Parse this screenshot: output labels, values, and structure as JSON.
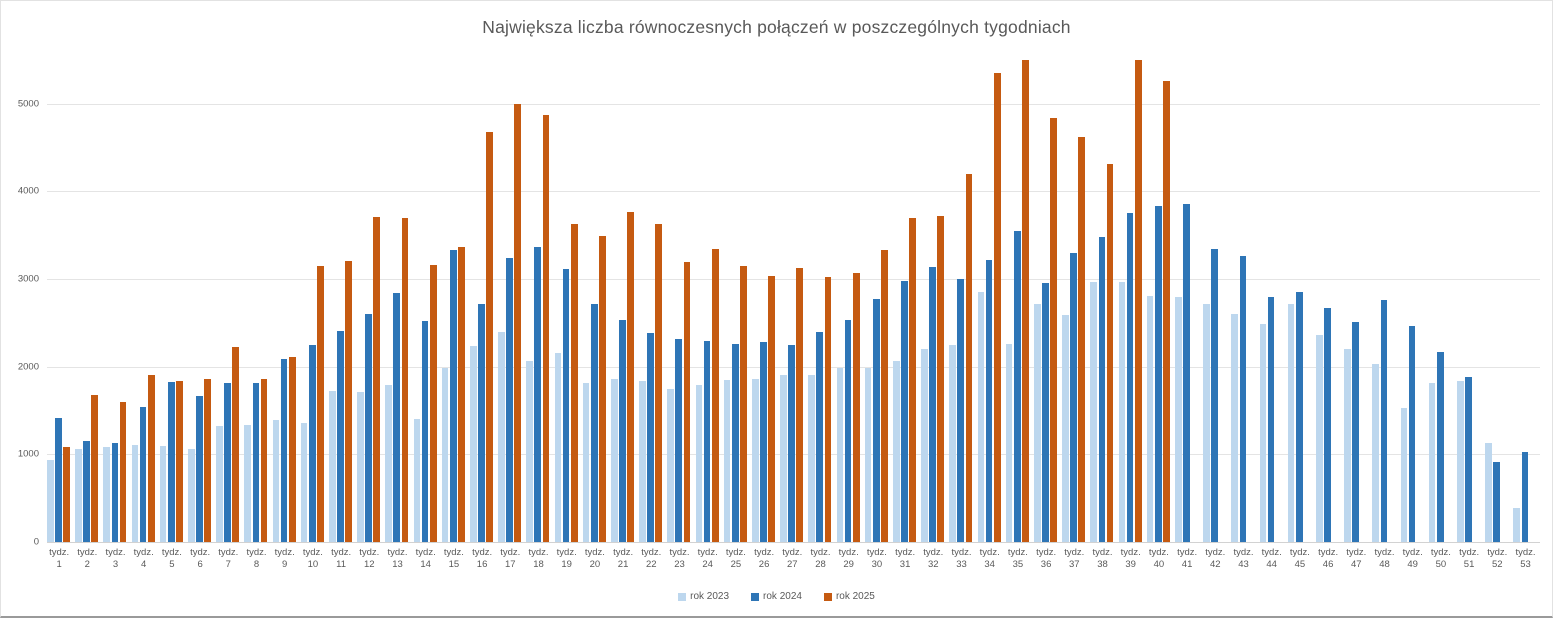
{
  "title": "Największa liczba równoczesnych połączeń w poszczególnych tygodniach",
  "colors": {
    "rok2023": "#BDD7EE",
    "rok2024": "#2E75B6",
    "rok2025": "#C55A11",
    "title_text": "#595959",
    "axis_text": "#595959",
    "gridline": "#E4E4E4"
  },
  "legend": [
    {
      "label": "rok 2023",
      "color": "#BDD7EE"
    },
    {
      "label": "rok 2024",
      "color": "#2E75B6"
    },
    {
      "label": "rok 2025",
      "color": "#C55A11"
    }
  ],
  "x_axis": {
    "label_prefix": "tydz."
  },
  "y_axis": {
    "ticks": [
      0,
      1000,
      2000,
      3000,
      4000,
      5000
    ]
  },
  "chart_data": {
    "type": "bar",
    "title": "Największa liczba równoczesnych połączeń w poszczególnych tygodniach",
    "xlabel": "",
    "ylabel": "",
    "ylim": [
      0,
      5600
    ],
    "grid": true,
    "legend_position": "bottom",
    "categories": [
      "1",
      "2",
      "3",
      "4",
      "5",
      "6",
      "7",
      "8",
      "9",
      "10",
      "11",
      "12",
      "13",
      "14",
      "15",
      "16",
      "17",
      "18",
      "19",
      "20",
      "21",
      "22",
      "23",
      "24",
      "25",
      "26",
      "27",
      "28",
      "29",
      "30",
      "31",
      "32",
      "33",
      "34",
      "35",
      "36",
      "37",
      "38",
      "39",
      "40",
      "41",
      "42",
      "43",
      "44",
      "45",
      "46",
      "47",
      "48",
      "49",
      "50",
      "51",
      "52",
      "53"
    ],
    "series": [
      {
        "name": "rok 2023",
        "color": "#BDD7EE",
        "values": [
          940,
          1060,
          1080,
          1110,
          1100,
          1060,
          1320,
          1340,
          1390,
          1360,
          1720,
          1710,
          1790,
          1400,
          1980,
          2230,
          2390,
          2060,
          2150,
          1810,
          1860,
          1840,
          1740,
          1790,
          1850,
          1860,
          1900,
          1900,
          1990,
          1990,
          2060,
          2200,
          2250,
          2850,
          2260,
          2710,
          2590,
          2960,
          2970,
          2800,
          2790,
          2710,
          2600,
          2490,
          2720,
          2360,
          2200,
          2030,
          1530,
          1810,
          1840,
          1130,
          390
        ]
      },
      {
        "name": "rok 2024",
        "color": "#2E75B6",
        "values": [
          1420,
          1150,
          1130,
          1540,
          1820,
          1670,
          1810,
          1810,
          2090,
          2250,
          2410,
          2600,
          2840,
          2520,
          3330,
          2710,
          3240,
          3360,
          3110,
          2710,
          2530,
          2380,
          2320,
          2290,
          2260,
          2280,
          2250,
          2400,
          2530,
          2770,
          2980,
          3140,
          3000,
          3220,
          3550,
          2950,
          3300,
          3480,
          3750,
          3830,
          3860,
          3340,
          3260,
          2790,
          2850,
          2670,
          2510,
          2760,
          2460,
          2170,
          1880,
          910,
          1030
        ]
      },
      {
        "name": "rok 2025",
        "color": "#C55A11",
        "values": [
          1080,
          1680,
          1600,
          1900,
          1840,
          1860,
          2220,
          1860,
          2110,
          3150,
          3200,
          3710,
          3700,
          3160,
          3360,
          4680,
          4990,
          4870,
          3630,
          3490,
          3760,
          3630,
          3190,
          3340,
          3150,
          3030,
          3120,
          3020,
          3070,
          3330,
          3690,
          3720,
          4200,
          5350,
          5500,
          4830,
          4620,
          4310,
          5500,
          5260,
          null,
          null,
          null,
          null,
          null,
          null,
          null,
          null,
          null,
          null,
          null,
          null,
          null
        ]
      }
    ]
  }
}
